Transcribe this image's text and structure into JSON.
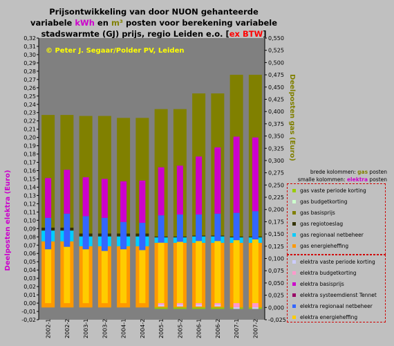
{
  "title": {
    "line1": "Prijsontwikkeling van door NUON gehanteerde",
    "line2_a": "variabele",
    "line2_kwh": "kWh",
    "line2_b": "en",
    "line2_m3": "m³",
    "line2_c": "posten voor berekening variabele",
    "line3_a": "stadswarmte (GJ) prijs, regio Leiden e.o. [",
    "line3_exbtw": "ex BTW",
    "line3_b": "]"
  },
  "watermark": "© Peter J. Segaar/Polder PV, Leiden",
  "axes": {
    "left_label": "Deelposten elektra (Euro)",
    "right_label": "Deelposten gas (Euro)",
    "left_ticks": [
      "-0,02",
      "-0,01",
      "0,00",
      "0,01",
      "0,02",
      "0,03",
      "0,04",
      "0,05",
      "0,06",
      "0,07",
      "0,08",
      "0,09",
      "0,10",
      "0,11",
      "0,12",
      "0,13",
      "0,14",
      "0,15",
      "0,16",
      "0,17",
      "0,18",
      "0,19",
      "0,20",
      "0,21",
      "0,22",
      "0,23",
      "0,24",
      "0,25",
      "0,26",
      "0,27",
      "0,28",
      "0,29",
      "0,30",
      "0,31",
      "0,32"
    ],
    "right_ticks": [
      "-0,025",
      "0,000",
      "0,025",
      "0,050",
      "0,075",
      "0,100",
      "0,125",
      "0,150",
      "0,175",
      "0,200",
      "0,225",
      "0,250",
      "0,275",
      "0,300",
      "0,325",
      "0,350",
      "0,375",
      "0,400",
      "0,425",
      "0,450",
      "0,475",
      "0,500",
      "0,525",
      "0,550"
    ]
  },
  "notes": {
    "wide_prefix": "brede kolommen: ",
    "wide_word": "gas",
    "wide_suffix": " posten",
    "narrow_prefix": "smalle kolommen: ",
    "narrow_word": "elektra",
    "narrow_suffix": " posten"
  },
  "colors": {
    "chart_bg": "#808080",
    "axis_gas": "#808000",
    "axis_elektra": "#cc00cc",
    "watermark": "#ffff00",
    "legend_border": "#d00000"
  },
  "chart_data": {
    "type": "bar",
    "stacked": true,
    "categories": [
      "2002-1",
      "2002-2",
      "2003-1",
      "2003-2",
      "2004-1",
      "2004-2",
      "2005-1",
      "2005-2",
      "2006-1",
      "2006-2",
      "2007-1",
      "2007-2"
    ],
    "gas": {
      "axis": "right",
      "ylim": [
        -0.025,
        0.55
      ],
      "series": [
        {
          "name": "gas energieheffing",
          "color": "#ff9900",
          "values": [
            0.135,
            0.135,
            0.125,
            0.125,
            0.125,
            0.125,
            0.132,
            0.132,
            0.132,
            0.132,
            0.132,
            0.132
          ]
        },
        {
          "name": "gas regionaal netbeheer",
          "color": "#00ccff",
          "values": [
            0.022,
            0.022,
            0.02,
            0.02,
            0.02,
            0.02,
            0.011,
            0.011,
            0.013,
            0.013,
            0.011,
            0.011
          ]
        },
        {
          "name": "gas regiotoeslag",
          "color": "#333300",
          "values": [
            0.006,
            0.006,
            0.006,
            0.006,
            0.006,
            0.006,
            0.002,
            0.002,
            0.002,
            0.002,
            0.002,
            0.002
          ]
        },
        {
          "name": "gas basisprijs",
          "color": "#808000",
          "values": [
            0.23,
            0.23,
            0.24,
            0.24,
            0.236,
            0.236,
            0.26,
            0.26,
            0.29,
            0.29,
            0.33,
            0.33
          ]
        },
        {
          "name": "gas budgetkorting",
          "color": "#ccffcc",
          "values": [
            0,
            0,
            0,
            0,
            0,
            0,
            0,
            0,
            0,
            0,
            0,
            0
          ]
        },
        {
          "name": "gas vaste periode korting",
          "color": "#99cc00",
          "values": [
            0,
            0,
            0,
            0,
            0,
            0,
            -0.003,
            -0.003,
            -0.003,
            -0.003,
            -0.003,
            -0.003
          ]
        }
      ]
    },
    "elektra": {
      "axis": "left",
      "ylim": [
        -0.02,
        0.32
      ],
      "series": [
        {
          "name": "elektra energieheffing",
          "color": "#ffcc00",
          "values": [
            0.065,
            0.068,
            0.065,
            0.063,
            0.065,
            0.064,
            0.073,
            0.074,
            0.075,
            0.075,
            0.076,
            0.077
          ]
        },
        {
          "name": "elektra regionaal netbeheer",
          "color": "#3366ff",
          "values": [
            0.038,
            0.04,
            0.04,
            0.04,
            0.033,
            0.033,
            0.033,
            0.033,
            0.032,
            0.033,
            0.033,
            0.034
          ]
        },
        {
          "name": "elektra systeemdienst Tennet",
          "color": "#990066",
          "values": [
            0,
            0,
            0,
            0,
            0,
            0,
            0,
            0,
            0,
            0,
            0,
            0
          ]
        },
        {
          "name": "elektra basisprijs",
          "color": "#cc00cc",
          "values": [
            0.048,
            0.053,
            0.047,
            0.047,
            0.049,
            0.051,
            0.058,
            0.059,
            0.07,
            0.08,
            0.092,
            0.089
          ]
        },
        {
          "name": "elektra budgetkorting",
          "color": "#ff99cc",
          "values": [
            0,
            0,
            0,
            0,
            0,
            0,
            -0.002,
            -0.002,
            -0.002,
            -0.002,
            -0.005,
            -0.005
          ]
        },
        {
          "name": "elektra vaste periode korting",
          "color": "#ccccff",
          "values": [
            0,
            0,
            0,
            0,
            0,
            0,
            -0.002,
            -0.002,
            -0.002,
            -0.002,
            -0.002,
            -0.002
          ]
        }
      ]
    },
    "xlabel": "",
    "ylabel_left": "Deelposten elektra (Euro)",
    "ylabel_right": "Deelposten gas (Euro)"
  }
}
